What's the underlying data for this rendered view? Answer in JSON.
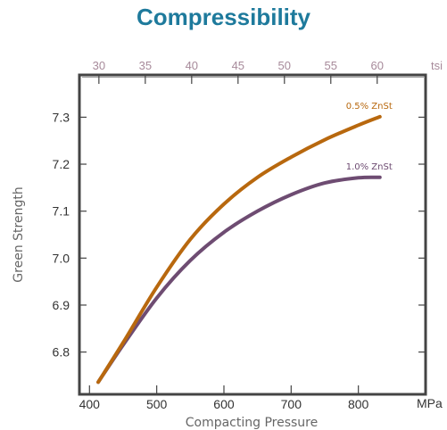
{
  "chart_data": {
    "type": "line",
    "title": "Compressibility",
    "xlabel": "Compacting Pressure",
    "ylabel": "Green Strength",
    "x_unit": "MPa",
    "x_top_unit": "tsi",
    "xlim": [
      385,
      900
    ],
    "ylim": [
      6.71,
      7.39
    ],
    "x_ticks": [
      400,
      500,
      600,
      700,
      800
    ],
    "x_top_ticks": [
      30,
      35,
      40,
      45,
      50,
      55,
      60
    ],
    "y_ticks": [
      6.8,
      6.9,
      7.0,
      7.1,
      7.2,
      7.3
    ],
    "grid": false,
    "colors": {
      "title": "#1e7a9c",
      "frame": "#444444",
      "top_axis": "#a78a9a"
    },
    "series": [
      {
        "name": "0.5% ZnSt",
        "color": "#b8680e",
        "x": [
          413,
          450,
          500,
          550,
          600,
          650,
          700,
          750,
          800,
          832
        ],
        "y": [
          6.736,
          6.82,
          6.938,
          7.04,
          7.115,
          7.172,
          7.215,
          7.252,
          7.283,
          7.301
        ]
      },
      {
        "name": "1.0% ZnSt",
        "color": "#6e4c72",
        "x": [
          413,
          450,
          500,
          550,
          600,
          650,
          700,
          750,
          800,
          832
        ],
        "y": [
          6.736,
          6.815,
          6.915,
          6.995,
          7.055,
          7.1,
          7.135,
          7.16,
          7.171,
          7.172
        ]
      }
    ]
  }
}
